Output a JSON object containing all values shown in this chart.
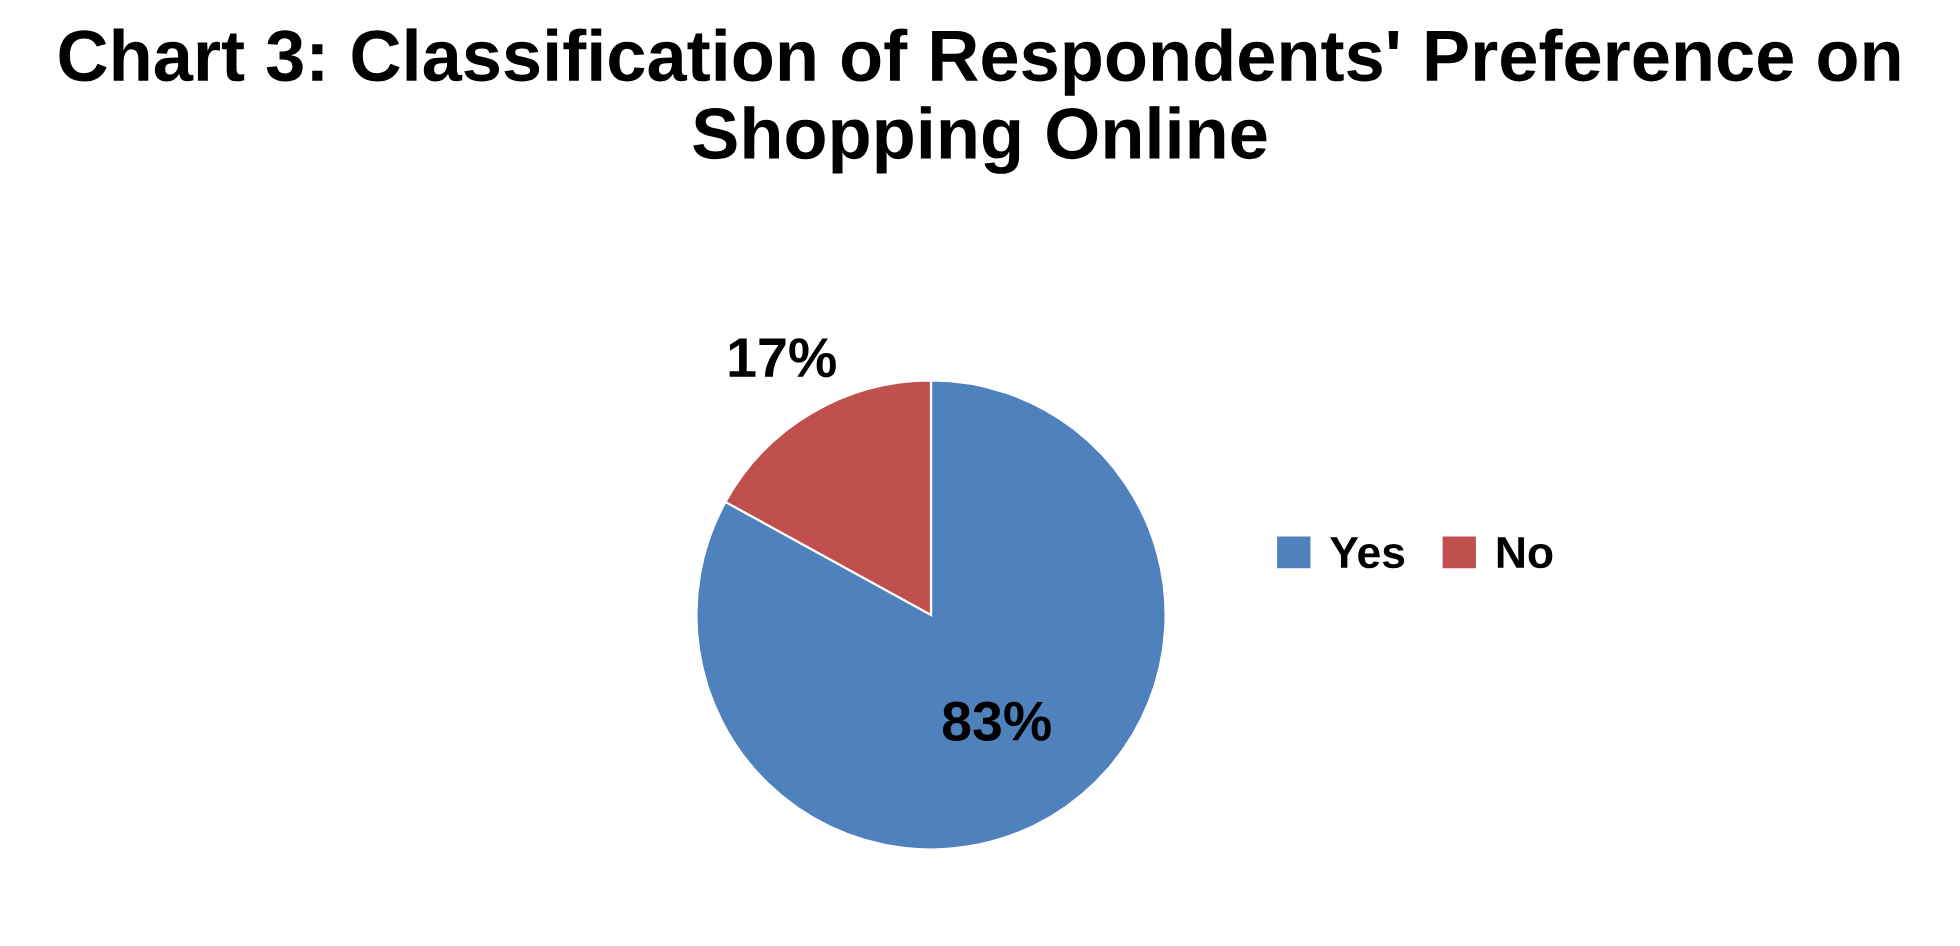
{
  "chart_data": {
    "type": "pie",
    "title": "Chart 3: Classification of Respondents' Preference on Shopping Online",
    "categories": [
      "Yes",
      "No"
    ],
    "values": [
      83,
      17
    ],
    "colors": [
      "#4f81bd",
      "#c0504d"
    ],
    "value_labels": [
      "83%",
      "17%"
    ],
    "legend": "right"
  }
}
